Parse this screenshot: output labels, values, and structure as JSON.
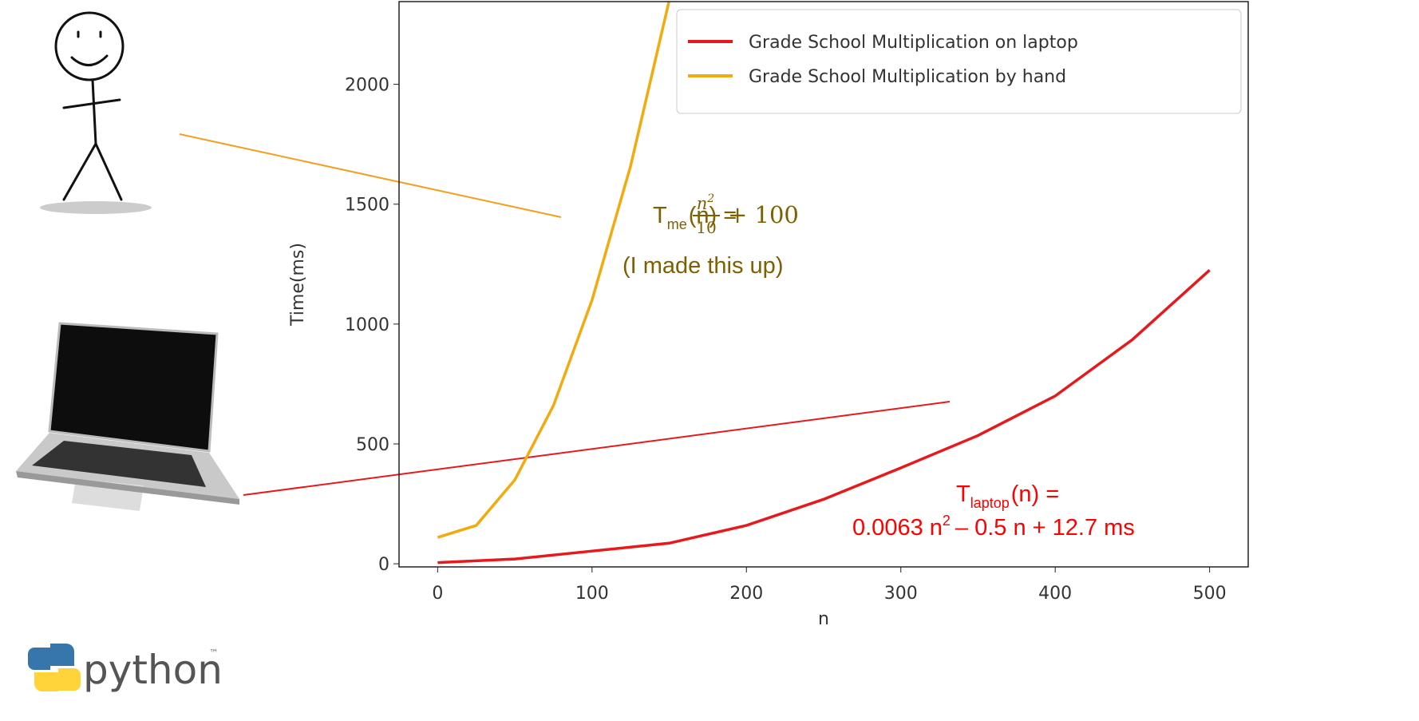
{
  "chart_data": {
    "type": "line",
    "xlabel": "n",
    "ylabel": "Time(ms)",
    "xlim": [
      -25,
      525
    ],
    "ylim": [
      -13,
      2345
    ],
    "xticks": [
      0,
      100,
      200,
      300,
      400,
      500
    ],
    "yticks": [
      0,
      500,
      1000,
      1500,
      2000
    ],
    "legend": "upper right",
    "series": [
      {
        "name": "Grade School Multiplication on laptop",
        "color": "#e8191c",
        "x": [
          0,
          50,
          100,
          150,
          200,
          250,
          300,
          350,
          400,
          450,
          500
        ],
        "values": [
          5,
          20,
          53,
          86,
          160,
          269,
          400,
          535,
          700,
          935,
          1225
        ]
      },
      {
        "name": "Grade School Multiplication by hand",
        "color": "#f2ab0e",
        "x": [
          0,
          25,
          50,
          75,
          100,
          125,
          150
        ],
        "values": [
          110,
          160,
          350,
          660,
          1100,
          1660,
          2350
        ]
      }
    ],
    "annotations": [
      {
        "main": "T",
        "sub": "me",
        "text": "(n) =",
        "num": "n",
        "num_sup": "2",
        "den": "10",
        "tail": "+ 100"
      },
      {
        "text": "(I made this up)"
      },
      {
        "main": "T",
        "sub": "laptop",
        "text": "(n) ="
      },
      {
        "text": "0.0063 n",
        "sup": "2",
        "tail": "– 0.5 n + 12.7 ms"
      }
    ]
  },
  "logo": {
    "text": "python",
    "tm": "™"
  }
}
